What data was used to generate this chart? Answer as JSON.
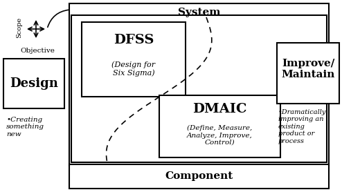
{
  "bg_color": "#ffffff",
  "border_color": "#000000",
  "system_label": "System",
  "component_label": "Component",
  "dfss_title": "DFSS",
  "dfss_subtitle": "(Design for\nSix Sigma)",
  "dmaic_title": "DMAIC",
  "dmaic_subtitle": "(Define, Measure,\nAnalyze, Improve,\nControl)",
  "design_title": "Design",
  "design_subtitle": "•Creating\nsomething\nnew",
  "improve_title": "Improve/\nMaintain",
  "improve_subtitle": "•Dramatically\nimproving an\nexisting\nproduct or\nprocess",
  "scope_label": "Scope",
  "objective_label": "Objective",
  "figw": 4.94,
  "figh": 2.78,
  "dpi": 100
}
